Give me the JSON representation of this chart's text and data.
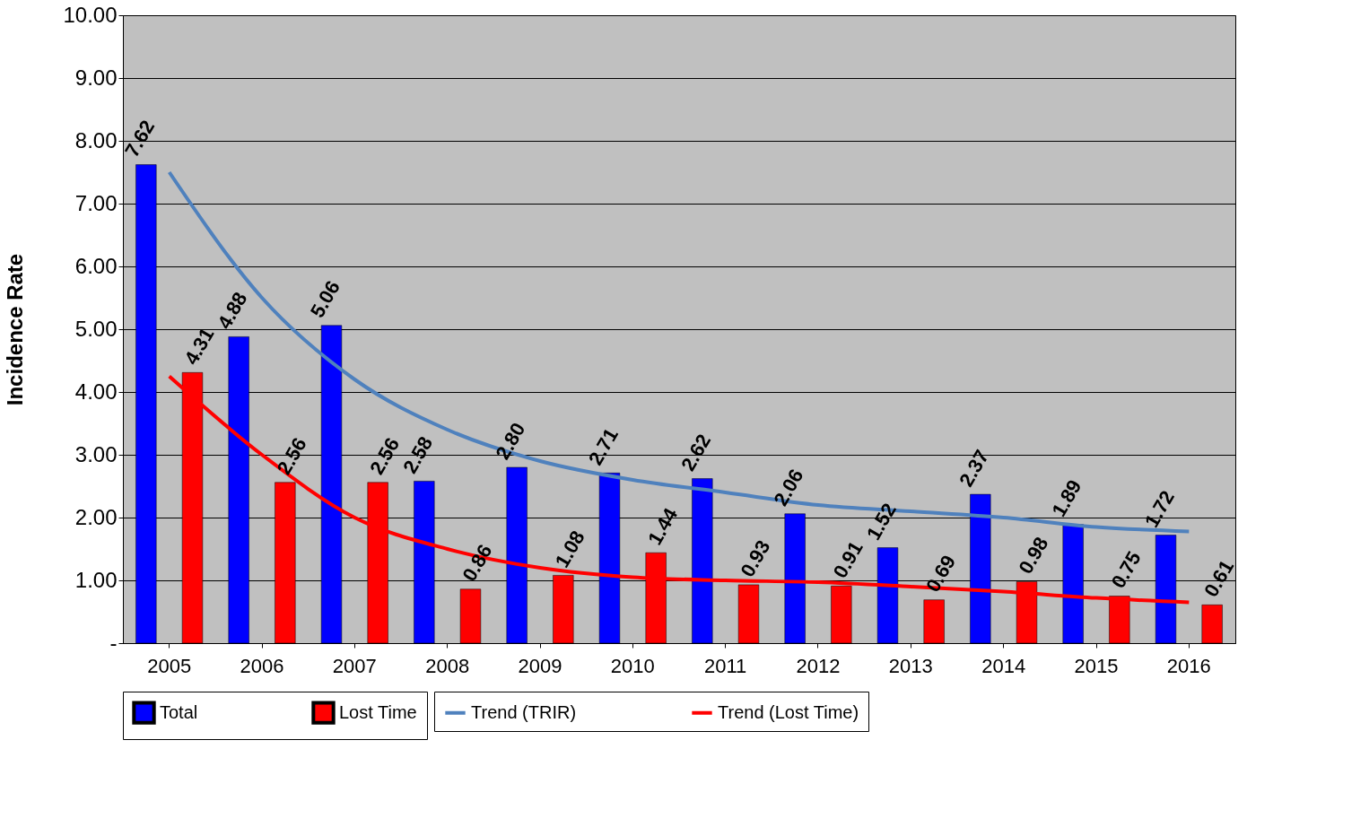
{
  "chart_data": {
    "type": "bar",
    "ylabel": "Incidence Rate",
    "categories": [
      "2005",
      "2006",
      "2007",
      "2008",
      "2009",
      "2010",
      "2011",
      "2012",
      "2013",
      "2014",
      "2015",
      "2016"
    ],
    "series": [
      {
        "name": "Total",
        "color": "#0000ff",
        "values": [
          7.62,
          4.88,
          5.06,
          2.58,
          2.8,
          2.71,
          2.62,
          2.06,
          1.52,
          2.37,
          1.89,
          1.72
        ],
        "value_labels": [
          "7.62",
          "4.88",
          "5.06",
          "2.58",
          "2.80",
          "2.71",
          "2.62",
          "2.06",
          "1.52",
          "2.37",
          "1.89",
          "1.72"
        ]
      },
      {
        "name": "Lost Time",
        "color": "#ff0000",
        "values": [
          4.31,
          2.56,
          2.56,
          0.86,
          1.08,
          1.44,
          0.93,
          0.91,
          0.69,
          0.98,
          0.75,
          0.61
        ],
        "value_labels": [
          "4.31",
          "2.56",
          "2.56",
          "0.86",
          "1.08",
          "1.44",
          "0.93",
          "0.91",
          "0.69",
          "0.98",
          "0.75",
          "0.61"
        ]
      },
      {
        "name": "Trend (TRIR)",
        "type": "line",
        "color": "#4f81bd",
        "values": [
          7.5,
          5.5,
          4.2,
          3.4,
          2.9,
          2.6,
          2.4,
          2.2,
          2.1,
          2.0,
          1.85,
          1.78
        ]
      },
      {
        "name": "Trend (Lost Time)",
        "type": "line",
        "color": "#ff0000",
        "values": [
          4.25,
          3.0,
          2.0,
          1.5,
          1.2,
          1.05,
          1.0,
          0.97,
          0.9,
          0.82,
          0.72,
          0.65
        ]
      }
    ],
    "ylim": [
      0,
      10
    ],
    "yticks": [
      {
        "value": 0,
        "label": "-"
      },
      {
        "value": 1,
        "label": "1.00"
      },
      {
        "value": 2,
        "label": "2.00"
      },
      {
        "value": 3,
        "label": "3.00"
      },
      {
        "value": 4,
        "label": "4.00"
      },
      {
        "value": 5,
        "label": "5.00"
      },
      {
        "value": 6,
        "label": "6.00"
      },
      {
        "value": 7,
        "label": "7.00"
      },
      {
        "value": 8,
        "label": "8.00"
      },
      {
        "value": 9,
        "label": "9.00"
      },
      {
        "value": 10,
        "label": "10.00"
      }
    ],
    "grid": "y",
    "legend": "bottom"
  }
}
